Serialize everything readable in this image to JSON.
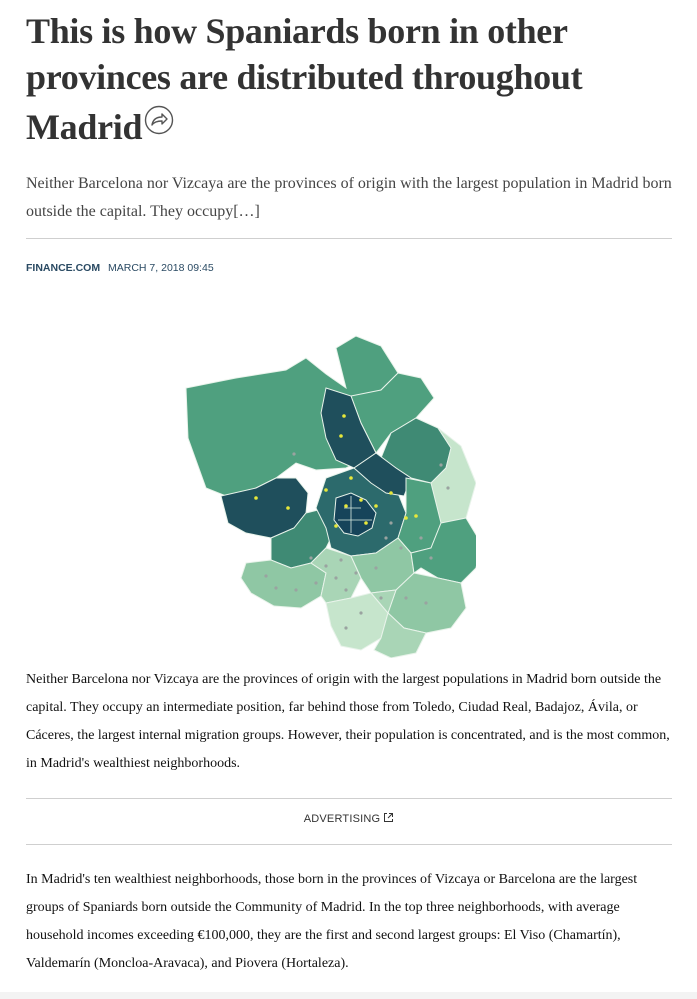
{
  "article": {
    "headline": "This is how Spaniards born in other provinces are distributed throughout Madrid",
    "summary": "Neither Barcelona nor Vizcaya are the provinces of origin with the largest population in Madrid born outside the capital. They occupy[…]",
    "byline": {
      "source": "FINANCE.COM",
      "date": "MARCH 7, 2018 09:45"
    },
    "paragraph_1": "Neither Barcelona nor Vizcaya are the provinces of origin with the largest populations in Madrid born outside the capital. They occupy an intermediate position, far behind those from Toledo, Ciudad Real, Badajoz, Ávila, or Cáceres, the largest internal migration groups. However, their population is concentrated, and is the most common, in Madrid's wealthiest neighborhoods.",
    "advertising_label": "ADVERTISING",
    "paragraph_2": "In Madrid's ten wealthiest neighborhoods, those born in the provinces of Vizcaya or Barcelona are the largest groups of Spaniards born outside the Community of Madrid. In the top three neighborhoods, with average household incomes exceeding €100,000, they are the first and second largest groups: El Viso (Chamartín), Valdemarín (Moncloa-Aravaca), and Piovera (Hortaleza)."
  },
  "icons": {
    "share": "share-icon",
    "external_link": "external-link-icon"
  },
  "colors": {
    "headline": "#333333",
    "byline": "#2a4a63",
    "map_dark": "#1f4f5c",
    "map_mid": "#3f8a74",
    "map_green": "#4fa07f",
    "map_light": "#8fc7a4",
    "map_pale": "#c6e5cc",
    "marker_yellow": "#e7e83a"
  }
}
